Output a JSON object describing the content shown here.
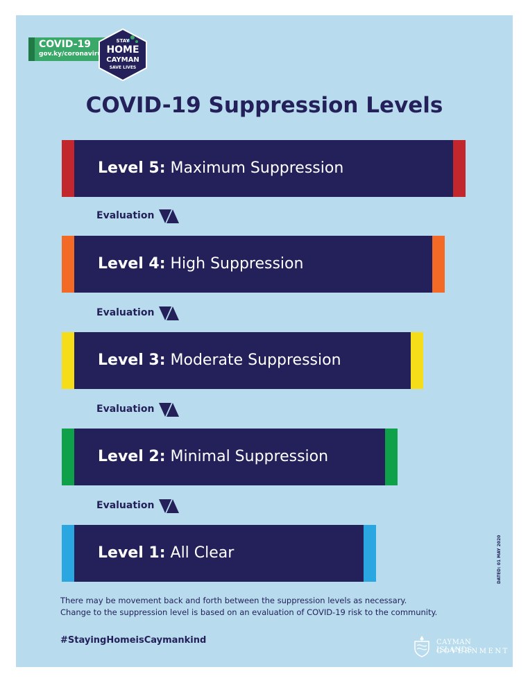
{
  "logo": {
    "covid_label": "COVID-19",
    "url": "gov.ky/coronavirus",
    "badge_line1": "STAY",
    "badge_line2": "HOME",
    "badge_line3": "CAYMAN",
    "badge_line4": "SAVE LIVES"
  },
  "title": "COVID-19 Suppression Levels",
  "levels": [
    {
      "prefix": "Level 5:",
      "name": "Maximum Suppression",
      "accent": "#c1272d"
    },
    {
      "prefix": "Level 4:",
      "name": "High Suppression",
      "accent": "#f26a25"
    },
    {
      "prefix": "Level 3:",
      "name": "Moderate Suppression",
      "accent": "#f6dd1a"
    },
    {
      "prefix": "Level 2:",
      "name": "Minimal Suppression",
      "accent": "#0fa04a"
    },
    {
      "prefix": "Level 1:",
      "name": "All Clear",
      "accent": "#2aa7e0"
    }
  ],
  "evaluation_label": "Evaluation",
  "notes": {
    "line1": "There may be movement back and forth between the suppression levels as necessary.",
    "line2": "Change to the suppression level is based on an evaluation of COVID-19 risk to the community."
  },
  "hashtag": "#StayingHomeisCaymankind",
  "dated": "DATED: 01 MAY 2020",
  "government": {
    "line1": "CAYMAN ISLANDS",
    "line2": "GOVERNMENT"
  },
  "colors": {
    "background": "#b8dced",
    "navy": "#23205a",
    "logo_green": "#3aa868"
  }
}
